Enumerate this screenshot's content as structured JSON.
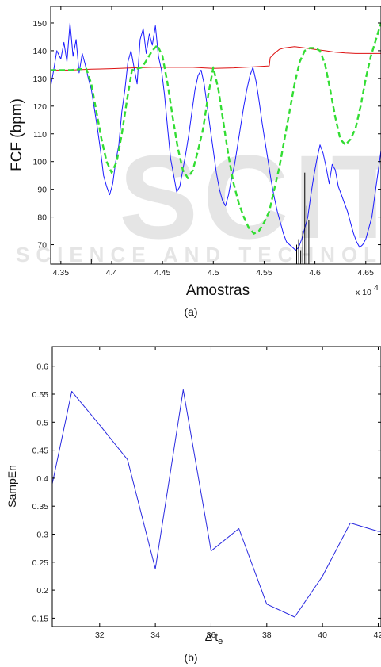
{
  "chart_data": [
    {
      "id": "a",
      "type": "line",
      "caption": "(a)",
      "xlabel": "Amostras",
      "ylabel": "FCF (bpm)",
      "x_multiplier": "x 10",
      "x_multiplier_exp": "4",
      "xlim": [
        4.34,
        4.665
      ],
      "ylim": [
        63,
        156
      ],
      "xticks": [
        4.35,
        4.4,
        4.45,
        4.5,
        4.55,
        4.6,
        4.65
      ],
      "xtick_labels": [
        "4.35",
        "4.4",
        "4.45",
        "4.5",
        "4.55",
        "4.6",
        "4.65"
      ],
      "yticks": [
        70,
        80,
        90,
        100,
        110,
        120,
        130,
        140,
        150
      ],
      "grid": false,
      "series": [
        {
          "style": "solid",
          "color": "#1a1aff",
          "width": 1,
          "x": [
            4.34,
            4.343,
            4.346,
            4.35,
            4.353,
            4.356,
            4.359,
            4.362,
            4.365,
            4.368,
            4.371,
            4.374,
            4.377,
            4.38,
            4.383,
            4.386,
            4.389,
            4.392,
            4.395,
            4.398,
            4.401,
            4.404,
            4.407,
            4.41,
            4.413,
            4.416,
            4.419,
            4.422,
            4.425,
            4.428,
            4.431,
            4.434,
            4.437,
            4.44,
            4.443,
            4.446,
            4.449,
            4.452,
            4.455,
            4.458,
            4.461,
            4.464,
            4.467,
            4.47,
            4.473,
            4.476,
            4.479,
            4.482,
            4.485,
            4.488,
            4.491,
            4.494,
            4.497,
            4.5,
            4.503,
            4.506,
            4.509,
            4.512,
            4.515,
            4.518,
            4.521,
            4.524,
            4.527,
            4.53,
            4.533,
            4.536,
            4.539,
            4.542,
            4.545,
            4.548,
            4.551,
            4.554,
            4.557,
            4.56,
            4.563,
            4.566,
            4.569,
            4.572,
            4.575,
            4.578,
            4.581,
            4.584,
            4.587,
            4.59,
            4.593,
            4.596,
            4.599,
            4.602,
            4.605,
            4.608,
            4.611,
            4.614,
            4.617,
            4.62,
            4.623,
            4.626,
            4.629,
            4.632,
            4.635,
            4.638,
            4.641,
            4.644,
            4.647,
            4.65,
            4.653,
            4.656,
            4.659,
            4.662,
            4.665
          ],
          "y": [
            127,
            133,
            140,
            137,
            143,
            136,
            150,
            138,
            144,
            132,
            139,
            135,
            130,
            126,
            119,
            112,
            104,
            95,
            91,
            88,
            92,
            100,
            106,
            118,
            126,
            136,
            140,
            134,
            128,
            144,
            148,
            139,
            146,
            142,
            149,
            138,
            133,
            124,
            112,
            101,
            95,
            89,
            91,
            97,
            103,
            110,
            118,
            126,
            131,
            133,
            128,
            120,
            112,
            104,
            96,
            90,
            86,
            84,
            88,
            94,
            99,
            106,
            113,
            120,
            126,
            131,
            134,
            129,
            122,
            114,
            107,
            100,
            93,
            87,
            82,
            78,
            74,
            71,
            70,
            69,
            68,
            69,
            72,
            76,
            80,
            88,
            95,
            101,
            106,
            103,
            98,
            92,
            99,
            97,
            91,
            88,
            85,
            82,
            78,
            74,
            71,
            69,
            70,
            72,
            76,
            80,
            88,
            96,
            104
          ]
        },
        {
          "style": "solid",
          "color": "#dd1111",
          "width": 1,
          "x": [
            4.34,
            4.36,
            4.38,
            4.4,
            4.42,
            4.44,
            4.46,
            4.48,
            4.5,
            4.52,
            4.54,
            4.555,
            4.556,
            4.56,
            4.565,
            4.57,
            4.58,
            4.59,
            4.6,
            4.61,
            4.62,
            4.63,
            4.64,
            4.65,
            4.665
          ],
          "y": [
            133,
            133,
            133.3,
            133.5,
            133.8,
            134,
            134,
            134,
            133.6,
            133.8,
            134.2,
            134.5,
            137.5,
            139,
            140.5,
            141,
            141.5,
            141,
            140.5,
            140,
            139.5,
            139.2,
            139,
            139,
            139
          ]
        },
        {
          "style": "dashed",
          "color": "#33dd33",
          "width": 2.4,
          "x": [
            4.34,
            4.36,
            4.375,
            4.38,
            4.385,
            4.39,
            4.395,
            4.4,
            4.405,
            4.41,
            4.415,
            4.42,
            4.43,
            4.44,
            4.445,
            4.45,
            4.455,
            4.46,
            4.465,
            4.47,
            4.475,
            4.48,
            4.485,
            4.49,
            4.495,
            4.5,
            4.505,
            4.51,
            4.515,
            4.52,
            4.525,
            4.53,
            4.535,
            4.54,
            4.545,
            4.55,
            4.555,
            4.56,
            4.565,
            4.57,
            4.575,
            4.58,
            4.585,
            4.59,
            4.595,
            4.6,
            4.605,
            4.61,
            4.615,
            4.62,
            4.625,
            4.63,
            4.635,
            4.64,
            4.645,
            4.65,
            4.655,
            4.66,
            4.665
          ],
          "y": [
            133,
            133,
            133.5,
            128,
            118,
            108,
            100,
            96,
            100,
            110,
            122,
            133,
            134,
            140,
            142,
            138,
            128,
            116,
            105,
            97,
            94,
            97,
            104,
            112,
            124,
            134,
            126,
            114,
            102,
            92,
            85,
            80,
            76,
            74,
            75,
            78,
            82,
            90,
            98,
            108,
            118,
            128,
            136,
            140,
            141,
            141,
            140,
            135,
            126,
            116,
            108,
            106,
            108,
            112,
            120,
            130,
            138,
            144,
            150
          ]
        },
        {
          "style": "bars",
          "color": "#000000",
          "width": 1,
          "x": [
            4.38,
            4.582,
            4.584,
            4.586,
            4.588,
            4.59,
            4.592,
            4.594
          ],
          "y": [
            65,
            70,
            72,
            68,
            75,
            96,
            84,
            79
          ]
        }
      ]
    },
    {
      "id": "b",
      "type": "line",
      "caption": "(b)",
      "xlabel": "Δ t",
      "xlabel_sub": "e",
      "ylabel": "SampEn",
      "xlim": [
        30.3,
        42.1
      ],
      "ylim": [
        0.135,
        0.635
      ],
      "xticks": [
        32,
        34,
        36,
        38,
        40,
        42
      ],
      "yticks": [
        0.15,
        0.2,
        0.25,
        0.3,
        0.35,
        0.4,
        0.45,
        0.5,
        0.55,
        0.6
      ],
      "ytick_labels": [
        "0.15",
        "0.2",
        "0.25",
        "0.3",
        "0.35",
        "0.4",
        "0.45",
        "0.5",
        "0.55",
        "0.6"
      ],
      "grid": false,
      "series": [
        {
          "style": "solid",
          "color": "#2a2ae0",
          "width": 1,
          "x": [
            30.3,
            31,
            32,
            33,
            34,
            35,
            36,
            37,
            38,
            39,
            40,
            41,
            42,
            42.1
          ],
          "y": [
            0.39,
            0.555,
            0.495,
            0.433,
            0.238,
            0.558,
            0.27,
            0.31,
            0.175,
            0.152,
            0.225,
            0.32,
            0.305,
            0.305
          ]
        }
      ]
    }
  ]
}
